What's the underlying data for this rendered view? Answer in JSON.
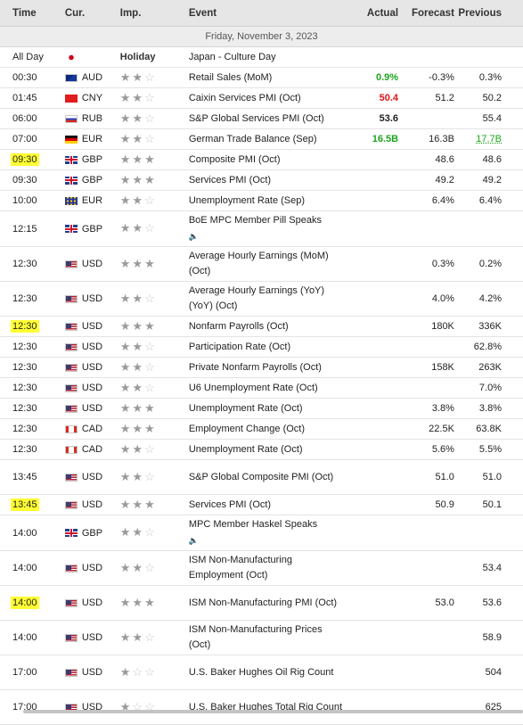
{
  "columns": {
    "time": "Time",
    "currency": "Cur.",
    "importance": "Imp.",
    "event": "Event",
    "actual": "Actual",
    "forecast": "Forecast",
    "previous": "Previous"
  },
  "date_label": "Friday, November 3, 2023",
  "rows": [
    {
      "time": "All Day",
      "flag": "jp",
      "currency": "",
      "importance_text": "Holiday",
      "event": "Japan - Culture Day",
      "actual": "",
      "forecast": "",
      "previous": ""
    },
    {
      "time": "00:30",
      "flag": "au",
      "currency": "AUD",
      "importance": 2,
      "event": "Retail Sales (MoM)",
      "actual": "0.9%",
      "actual_color": "green",
      "forecast": "-0.3%",
      "previous": "0.3%"
    },
    {
      "time": "01:45",
      "flag": "cn",
      "currency": "CNY",
      "importance": 2,
      "event": "Caixin Services PMI (Oct)",
      "actual": "50.4",
      "actual_color": "red",
      "forecast": "51.2",
      "previous": "50.2"
    },
    {
      "time": "06:00",
      "flag": "ru",
      "currency": "RUB",
      "importance": 2,
      "event": "S&P Global Services PMI (Oct)",
      "actual": "53.6",
      "actual_color": "black",
      "forecast": "",
      "previous": "55.4"
    },
    {
      "time": "07:00",
      "flag": "de",
      "currency": "EUR",
      "importance": 2,
      "event": "German Trade Balance (Sep)",
      "actual": "16.5B",
      "actual_color": "green",
      "forecast": "16.3B",
      "previous": "17.7B",
      "previous_color": "green"
    },
    {
      "time": "09:30",
      "highlight": true,
      "flag": "gb",
      "currency": "GBP",
      "importance": 3,
      "event": "Composite PMI (Oct)",
      "actual": "",
      "forecast": "48.6",
      "previous": "48.6"
    },
    {
      "time": "09:30",
      "flag": "gb",
      "currency": "GBP",
      "importance": 3,
      "event": "Services PMI (Oct)",
      "actual": "",
      "forecast": "49.2",
      "previous": "49.2"
    },
    {
      "time": "10:00",
      "flag": "eu",
      "currency": "EUR",
      "importance": 2,
      "event": "Unemployment Rate (Sep)",
      "actual": "",
      "forecast": "6.4%",
      "previous": "6.4%"
    },
    {
      "time": "12:15",
      "flag": "gb",
      "currency": "GBP",
      "importance": 2,
      "event": "BoE MPC Member Pill Speaks",
      "speech": true,
      "actual": "",
      "forecast": "",
      "previous": ""
    },
    {
      "time": "12:30",
      "flag": "us",
      "currency": "USD",
      "importance": 3,
      "event": "Average Hourly Earnings (MoM) (Oct)",
      "actual": "",
      "forecast": "0.3%",
      "previous": "0.2%"
    },
    {
      "time": "12:30",
      "flag": "us",
      "currency": "USD",
      "importance": 2,
      "event": "Average Hourly Earnings (YoY) (YoY) (Oct)",
      "actual": "",
      "forecast": "4.0%",
      "previous": "4.2%"
    },
    {
      "time": "12:30",
      "highlight": true,
      "flag": "us",
      "currency": "USD",
      "importance": 3,
      "event": "Nonfarm Payrolls (Oct)",
      "actual": "",
      "forecast": "180K",
      "previous": "336K"
    },
    {
      "time": "12:30",
      "flag": "us",
      "currency": "USD",
      "importance": 2,
      "event": "Participation Rate (Oct)",
      "actual": "",
      "forecast": "",
      "previous": "62.8%"
    },
    {
      "time": "12:30",
      "flag": "us",
      "currency": "USD",
      "importance": 2,
      "event": "Private Nonfarm Payrolls (Oct)",
      "actual": "",
      "forecast": "158K",
      "previous": "263K"
    },
    {
      "time": "12:30",
      "flag": "us",
      "currency": "USD",
      "importance": 2,
      "event": "U6 Unemployment Rate (Oct)",
      "actual": "",
      "forecast": "",
      "previous": "7.0%"
    },
    {
      "time": "12:30",
      "flag": "us",
      "currency": "USD",
      "importance": 3,
      "event": "Unemployment Rate (Oct)",
      "actual": "",
      "forecast": "3.8%",
      "previous": "3.8%"
    },
    {
      "time": "12:30",
      "flag": "ca",
      "currency": "CAD",
      "importance": 3,
      "event": "Employment Change (Oct)",
      "actual": "",
      "forecast": "22.5K",
      "previous": "63.8K"
    },
    {
      "time": "12:30",
      "flag": "ca",
      "currency": "CAD",
      "importance": 2,
      "event": "Unemployment Rate (Oct)",
      "actual": "",
      "forecast": "5.6%",
      "previous": "5.5%"
    },
    {
      "time": "13:45",
      "flag": "us",
      "currency": "USD",
      "importance": 2,
      "event": "S&P Global Composite PMI (Oct)",
      "actual": "",
      "forecast": "51.0",
      "previous": "51.0"
    },
    {
      "time": "13:45",
      "highlight": true,
      "flag": "us",
      "currency": "USD",
      "importance": 3,
      "event": "Services PMI (Oct)",
      "actual": "",
      "forecast": "50.9",
      "previous": "50.1"
    },
    {
      "time": "14:00",
      "flag": "gb",
      "currency": "GBP",
      "importance": 2,
      "event": "MPC Member Haskel Speaks",
      "speech": true,
      "actual": "",
      "forecast": "",
      "previous": ""
    },
    {
      "time": "14:00",
      "flag": "us",
      "currency": "USD",
      "importance": 2,
      "event": "ISM Non-Manufacturing Employment (Oct)",
      "actual": "",
      "forecast": "",
      "previous": "53.4"
    },
    {
      "time": "14:00",
      "highlight": true,
      "flag": "us",
      "currency": "USD",
      "importance": 3,
      "event": "ISM Non-Manufacturing PMI (Oct)",
      "actual": "",
      "forecast": "53.0",
      "previous": "53.6"
    },
    {
      "time": "14:00",
      "flag": "us",
      "currency": "USD",
      "importance": 2,
      "event": "ISM Non-Manufacturing Prices (Oct)",
      "actual": "",
      "forecast": "",
      "previous": "58.9"
    },
    {
      "time": "17:00",
      "flag": "us",
      "currency": "USD",
      "importance": 1,
      "event": "U.S. Baker Hughes Oil Rig Count",
      "actual": "",
      "forecast": "",
      "previous": "504"
    },
    {
      "time": "17:00",
      "flag": "us",
      "currency": "USD",
      "importance": 1,
      "event": "U.S. Baker Hughes Total Rig Count",
      "actual": "",
      "forecast": "",
      "previous": "625"
    }
  ]
}
